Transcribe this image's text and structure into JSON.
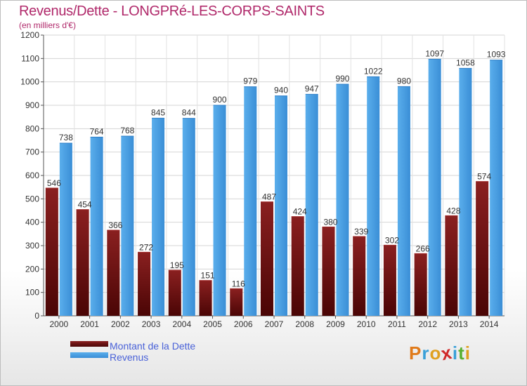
{
  "header": {
    "title": "Revenus/Dette - LONGPRé-LES-CORPS-SAINTS",
    "subtitle": "(en milliers d'€)"
  },
  "colors": {
    "dette": "#7a1515",
    "dette_dark": "#4a0505",
    "revenus": "#4a9ee0",
    "revenus_light": "#5aaeec",
    "revenus_dark": "#2e7fc8",
    "title": "#b0286a",
    "legend_text": "#4a62d8"
  },
  "chart_data": {
    "type": "bar",
    "categories": [
      "2000",
      "2001",
      "2002",
      "2003",
      "2004",
      "2005",
      "2006",
      "2007",
      "2008",
      "2009",
      "2010",
      "2011",
      "2012",
      "2013",
      "2014"
    ],
    "series": [
      {
        "name": "Montant de la Dette",
        "values": [
          546,
          454,
          366,
          272,
          195,
          151,
          116,
          487,
          424,
          380,
          339,
          302,
          266,
          428,
          574
        ]
      },
      {
        "name": "Revenus",
        "values": [
          738,
          764,
          768,
          845,
          844,
          900,
          979,
          940,
          947,
          990,
          1022,
          980,
          1097,
          1058,
          1093
        ]
      }
    ],
    "ylim": [
      0,
      1200
    ],
    "yticks": [
      0,
      100,
      200,
      300,
      400,
      500,
      600,
      700,
      800,
      900,
      1000,
      1100,
      1200
    ],
    "grid": true,
    "legend_position": "bottom-left"
  },
  "legend": [
    {
      "label": "Montant de la Dette"
    },
    {
      "label": "Revenus"
    }
  ],
  "logo": {
    "letters": [
      {
        "ch": "P",
        "color": "#e07a1a"
      },
      {
        "ch": "r",
        "color": "#3aa0d8"
      },
      {
        "ch": "o",
        "color": "#e0a020"
      },
      {
        "ch": "x",
        "color": "#d02828"
      },
      {
        "ch": "i",
        "color": "#3aa0d8"
      },
      {
        "ch": "t",
        "color": "#58b030"
      },
      {
        "ch": "i",
        "color": "#e0a020"
      }
    ]
  }
}
